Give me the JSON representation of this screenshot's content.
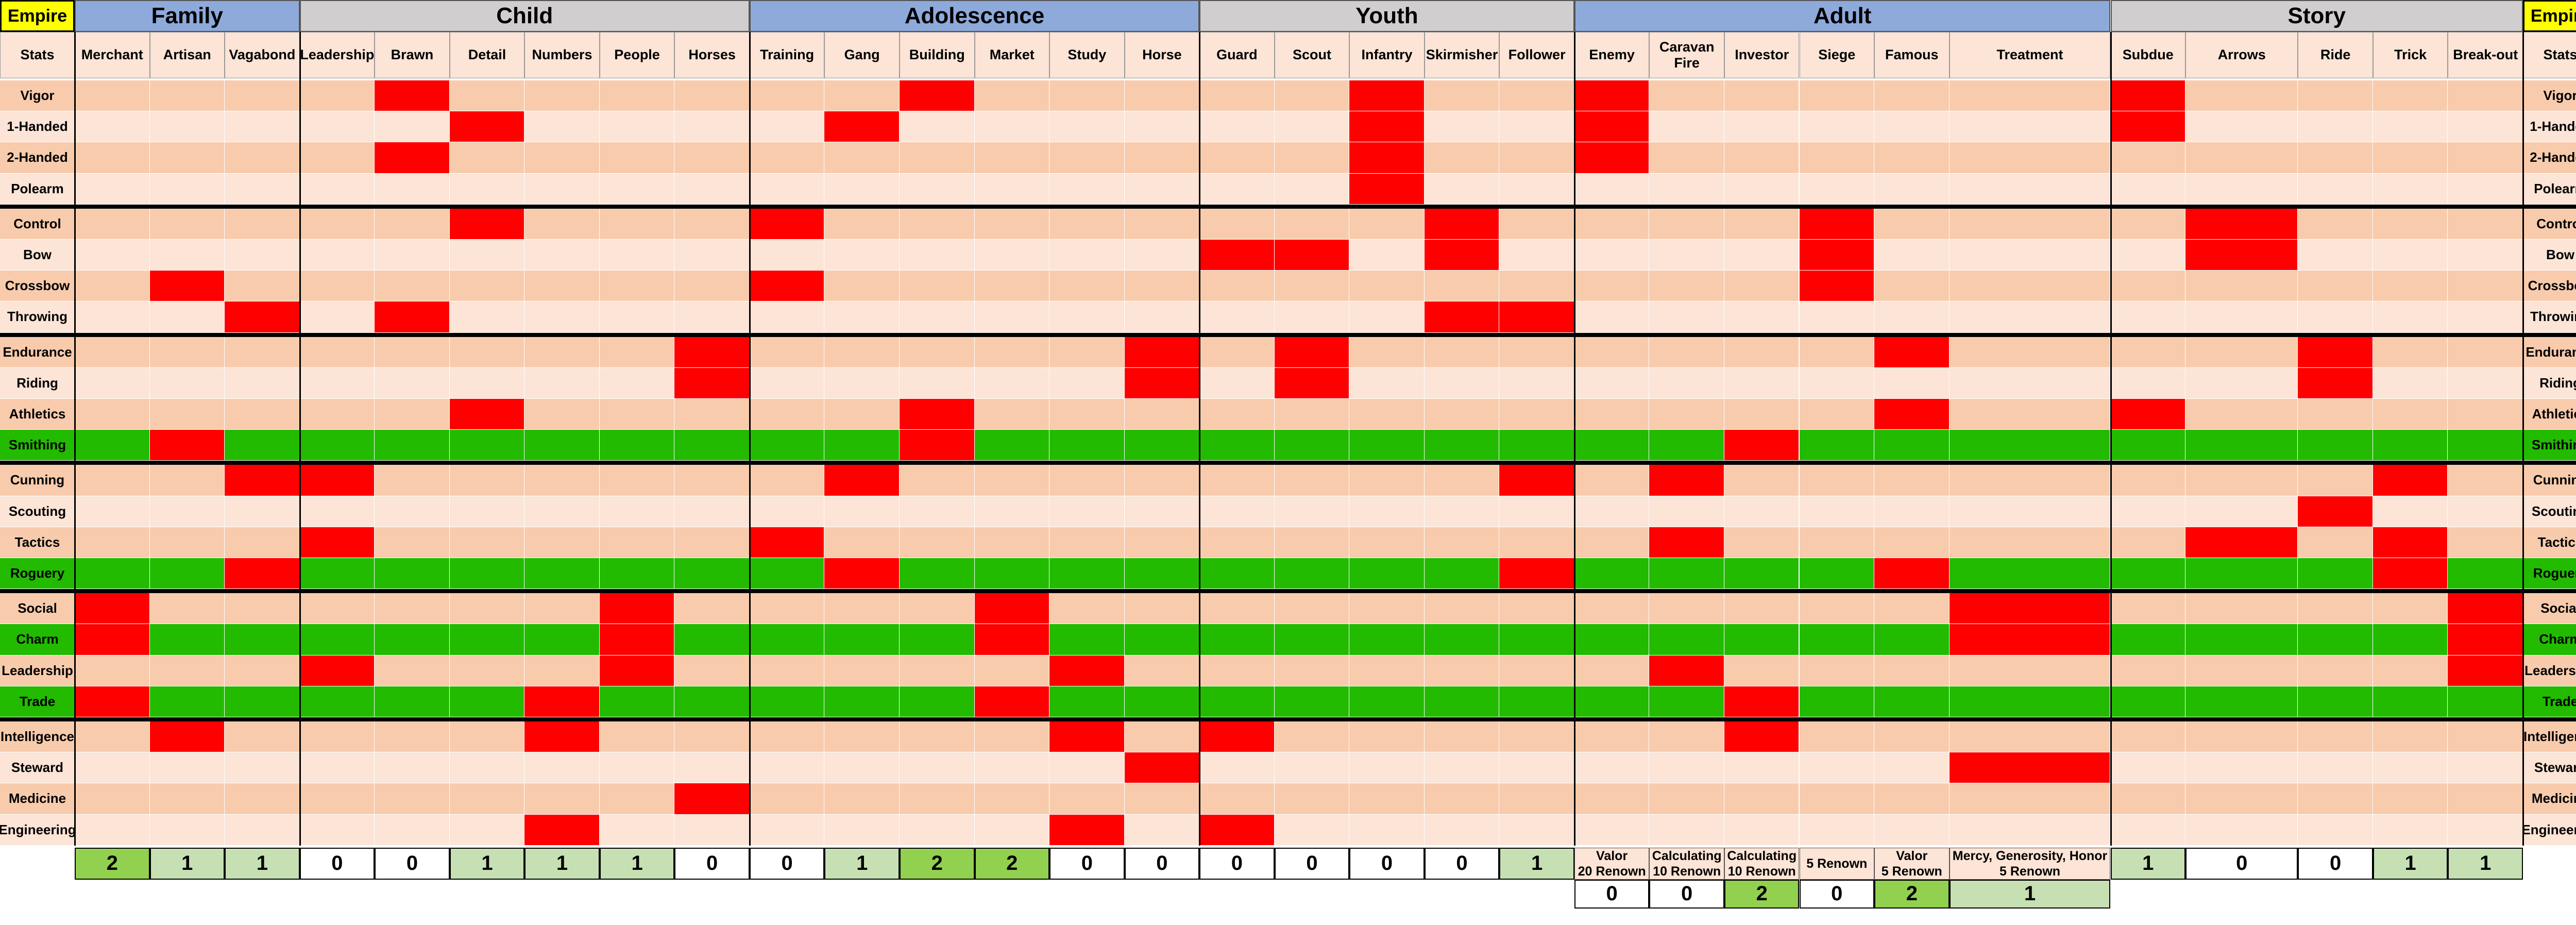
{
  "corner_label": "Empire",
  "stats_header": "Stats",
  "groups": [
    {
      "name": "Family",
      "columns": [
        "Merchant",
        "Artisan",
        "Vagabond"
      ]
    },
    {
      "name": "Child",
      "columns": [
        "Leadership",
        "Brawn",
        "Detail",
        "Numbers",
        "People",
        "Horses"
      ]
    },
    {
      "name": "Adolescence",
      "columns": [
        "Training",
        "Gang",
        "Building",
        "Market",
        "Study",
        "Horse"
      ]
    },
    {
      "name": "Youth",
      "columns": [
        "Guard",
        "Scout",
        "Infantry",
        "Skirmisher",
        "Follower"
      ]
    },
    {
      "name": "Adult",
      "columns": [
        "Enemy",
        "Caravan Fire",
        "Investor",
        "Siege",
        "Famous",
        "Treatment"
      ]
    },
    {
      "name": "Story",
      "columns": [
        "Subdue",
        "Arrows",
        "Ride",
        "Trick",
        "Break-out"
      ]
    }
  ],
  "stat_sections": [
    {
      "stats": [
        {
          "name": "Vigor",
          "highlight": false
        },
        {
          "name": "1-Handed",
          "highlight": false
        },
        {
          "name": "2-Handed",
          "highlight": false
        },
        {
          "name": "Polearm",
          "highlight": false
        }
      ]
    },
    {
      "stats": [
        {
          "name": "Control",
          "highlight": false
        },
        {
          "name": "Bow",
          "highlight": false
        },
        {
          "name": "Crossbow",
          "highlight": false
        },
        {
          "name": "Throwing",
          "highlight": false
        }
      ]
    },
    {
      "stats": [
        {
          "name": "Endurance",
          "highlight": false
        },
        {
          "name": "Riding",
          "highlight": false
        },
        {
          "name": "Athletics",
          "highlight": false
        },
        {
          "name": "Smithing",
          "highlight": true
        }
      ]
    },
    {
      "stats": [
        {
          "name": "Cunning",
          "highlight": false
        },
        {
          "name": "Scouting",
          "highlight": false
        },
        {
          "name": "Tactics",
          "highlight": false
        },
        {
          "name": "Roguery",
          "highlight": true
        }
      ]
    },
    {
      "stats": [
        {
          "name": "Social",
          "highlight": false
        },
        {
          "name": "Charm",
          "highlight": true
        },
        {
          "name": "Leadership",
          "highlight": false
        },
        {
          "name": "Trade",
          "highlight": true
        }
      ]
    },
    {
      "stats": [
        {
          "name": "Intelligence",
          "highlight": false
        },
        {
          "name": "Steward",
          "highlight": false
        },
        {
          "name": "Medicine",
          "highlight": false
        },
        {
          "name": "Engineering",
          "highlight": false
        }
      ]
    }
  ],
  "marks": {
    "Merchant": [
      "Social",
      "Charm",
      "Trade"
    ],
    "Artisan": [
      "Crossbow",
      "Smithing",
      "Intelligence"
    ],
    "Vagabond": [
      "Throwing",
      "Cunning",
      "Roguery"
    ],
    "Leadership": [
      "Cunning",
      "Tactics",
      "Leadership"
    ],
    "Brawn": [
      "Vigor",
      "2-Handed",
      "Throwing"
    ],
    "Detail": [
      "1-Handed",
      "Control",
      "Athletics"
    ],
    "Numbers": [
      "Trade",
      "Intelligence",
      "Engineering"
    ],
    "People": [
      "Social",
      "Charm",
      "Leadership"
    ],
    "Horses": [
      "Endurance",
      "Riding",
      "Medicine"
    ],
    "Training": [
      "Control",
      "Crossbow",
      "Tactics"
    ],
    "Gang": [
      "1-Handed",
      "Cunning",
      "Roguery"
    ],
    "Building": [
      "Vigor",
      "Athletics",
      "Smithing"
    ],
    "Market": [
      "Social",
      "Charm",
      "Trade"
    ],
    "Study": [
      "Leadership",
      "Intelligence",
      "Engineering"
    ],
    "Horse": [
      "Endurance",
      "Riding",
      "Steward"
    ],
    "Guard": [
      "Bow",
      "Intelligence",
      "Engineering"
    ],
    "Scout": [
      "Bow",
      "Endurance",
      "Riding"
    ],
    "Infantry": [
      "Vigor",
      "1-Handed",
      "2-Handed",
      "Polearm"
    ],
    "Skirmisher": [
      "Control",
      "Bow",
      "Throwing"
    ],
    "Follower": [
      "Throwing",
      "Cunning",
      "Roguery"
    ],
    "Enemy": [
      "Vigor",
      "1-Handed",
      "2-Handed"
    ],
    "Caravan Fire": [
      "Cunning",
      "Tactics",
      "Leadership"
    ],
    "Investor": [
      "Smithing",
      "Trade",
      "Intelligence"
    ],
    "Siege": [
      "Control",
      "Bow",
      "Crossbow"
    ],
    "Famous": [
      "Endurance",
      "Athletics",
      "Roguery"
    ],
    "Treatment": [
      "Social",
      "Charm",
      "Steward"
    ],
    "Subdue": [
      "Vigor",
      "1-Handed",
      "Athletics"
    ],
    "Arrows": [
      "Control",
      "Bow",
      "Tactics"
    ],
    "Ride": [
      "Endurance",
      "Riding",
      "Scouting"
    ],
    "Trick": [
      "Cunning",
      "Tactics",
      "Roguery"
    ],
    "Break-out": [
      "Social",
      "Charm",
      "Leadership"
    ]
  },
  "scores": {
    "Merchant": "2",
    "Artisan": "1",
    "Vagabond": "1",
    "Leadership": "0",
    "Brawn": "0",
    "Detail": "1",
    "Numbers": "1",
    "People": "1",
    "Horses": "0",
    "Training": "0",
    "Gang": "1",
    "Building": "2",
    "Market": "2",
    "Study": "0",
    "Horse": "0",
    "Guard": "0",
    "Scout": "0",
    "Infantry": "0",
    "Skirmisher": "0",
    "Follower": "1",
    "Subdue": "1",
    "Arrows": "0",
    "Ride": "0",
    "Trick": "1",
    "Break-out": "1"
  },
  "adult_requirements": {
    "Enemy": {
      "text": "Valor\n20 Renown",
      "value": "0"
    },
    "Caravan Fire": {
      "text": "Calculating\n10 Renown",
      "value": "0"
    },
    "Investor": {
      "text": "Calculating\n10 Renown",
      "value": "2"
    },
    "Siege": {
      "text": "5 Renown",
      "value": "0"
    },
    "Famous": {
      "text": "Valor\n5 Renown",
      "value": "2"
    },
    "Treatment": {
      "text": "Mercy, Generosity, Honor\n5 Renown",
      "value": "1"
    }
  },
  "colors": {
    "group_blue": "#8eaadb",
    "group_gray": "#d0cece",
    "empire_yellow": "#ffff00",
    "light_row": "#fce4d6",
    "dark_row": "#f8cbad",
    "highlight_green": "#22bb00",
    "mark_red": "#ff0000",
    "score_2": "#92d050",
    "score_1": "#c6e0b4",
    "score_0": "#ffffff"
  }
}
